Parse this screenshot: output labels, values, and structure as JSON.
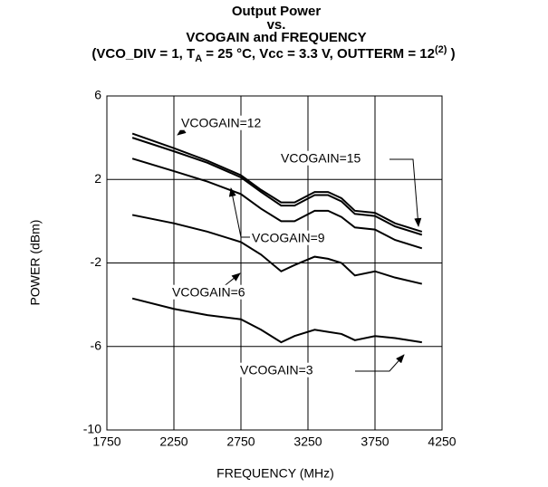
{
  "chart_data": {
    "type": "line",
    "title": [
      "Output Power",
      "vs.",
      "VCOGAIN and FREQUENCY"
    ],
    "subtitle_parts": [
      "(VCO_DIV = 1, T",
      "A",
      " = 25 °C, Vcc = 3.3 V, OUTTERM = 12",
      "(2)",
      " )"
    ],
    "x_label": "FREQUENCY (MHz)",
    "y_label": "POWER (dBm)",
    "x": [
      1940,
      2250,
      2500,
      2750,
      2900,
      3050,
      3150,
      3300,
      3400,
      3500,
      3600,
      3750,
      3900,
      4100
    ],
    "series": [
      {
        "name": "VCOGAIN=12",
        "color": "#000000",
        "values": [
          4.2,
          3.5,
          2.9,
          2.2,
          1.5,
          0.9,
          0.9,
          1.4,
          1.4,
          1.1,
          0.5,
          0.4,
          -0.1,
          -0.5
        ]
      },
      {
        "name": "VCOGAIN=15",
        "color": "#000000",
        "values": [
          4.0,
          3.35,
          2.8,
          2.1,
          1.4,
          0.75,
          0.75,
          1.25,
          1.25,
          0.95,
          0.35,
          0.25,
          -0.25,
          -0.65
        ]
      },
      {
        "name": "VCOGAIN=9",
        "color": "#000000",
        "values": [
          3.0,
          2.4,
          1.9,
          1.3,
          0.6,
          0.0,
          0.0,
          0.5,
          0.5,
          0.2,
          -0.3,
          -0.4,
          -0.9,
          -1.3
        ]
      },
      {
        "name": "VCOGAIN=6",
        "color": "#000000",
        "values": [
          0.3,
          -0.1,
          -0.5,
          -1.0,
          -1.6,
          -2.4,
          -2.1,
          -1.7,
          -1.8,
          -2.0,
          -2.6,
          -2.4,
          -2.7,
          -3.0
        ]
      },
      {
        "name": "VCOGAIN=3",
        "color": "#000000",
        "values": [
          -3.7,
          -4.2,
          -4.5,
          -4.7,
          -5.2,
          -5.8,
          -5.5,
          -5.2,
          -5.3,
          -5.4,
          -5.7,
          -5.5,
          -5.6,
          -5.8
        ]
      }
    ],
    "xlim": [
      1750,
      4250
    ],
    "xticks": [
      1750,
      2250,
      2750,
      3250,
      3750,
      4250
    ],
    "ylim": [
      -10,
      6
    ],
    "yticks": [
      6,
      2,
      -2,
      -6,
      -10
    ],
    "grid": true
  }
}
